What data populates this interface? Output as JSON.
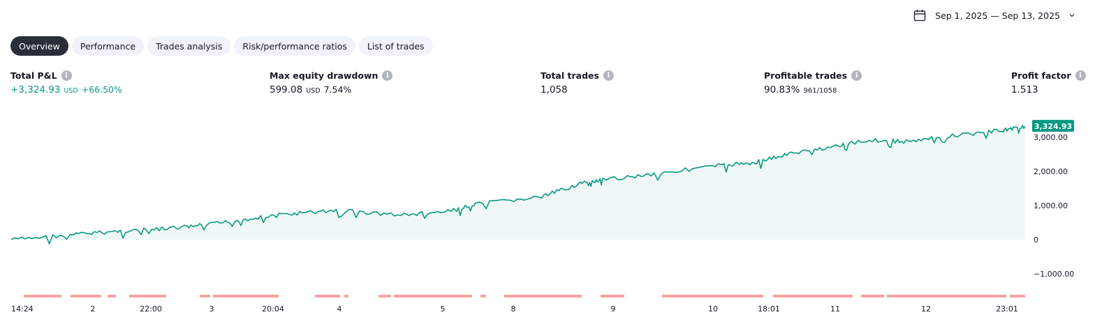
{
  "date_range": {
    "label": "Sep 1, 2025 — Sep 13, 2025"
  },
  "tabs": [
    {
      "label": "Overview",
      "active": true
    },
    {
      "label": "Performance",
      "active": false
    },
    {
      "label": "Trades analysis",
      "active": false
    },
    {
      "label": "Risk/performance ratios",
      "active": false
    },
    {
      "label": "List of trades",
      "active": false
    }
  ],
  "stats": {
    "total_pnl": {
      "label": "Total P&L",
      "value": "+3,324.93",
      "unit": "USD",
      "pct": "+66.50%"
    },
    "max_drawdown": {
      "label": "Max equity drawdown",
      "value": "599.08",
      "unit": "USD",
      "pct": "7.54%"
    },
    "total_trades": {
      "label": "Total trades",
      "value": "1,058"
    },
    "profitable_trades": {
      "label": "Profitable trades",
      "value": "90.83%",
      "detail": "961/1058"
    },
    "profit_factor": {
      "label": "Profit factor",
      "value": "1.513"
    }
  },
  "colors": {
    "line": "#089981",
    "fill": "#e8f5f2",
    "drawdown": "#f7a1a6",
    "active_tab": "#2a2e39",
    "tab_bg": "#f0f3fa"
  },
  "chart_data": {
    "type": "area",
    "y_ticks": [
      {
        "value": 3000,
        "label": "3,000.00"
      },
      {
        "value": 2000,
        "label": "2,000.00"
      },
      {
        "value": 1000,
        "label": "1,000.00"
      },
      {
        "value": 0,
        "label": "0"
      },
      {
        "value": -1000,
        "label": "−1,000.00"
      }
    ],
    "last_value_label": "3,324.93",
    "x_ticks": [
      "14:24",
      "2",
      "22:00",
      "3",
      "20:04",
      "4",
      "5",
      "8",
      "9",
      "10",
      "18:01",
      "11",
      "12",
      "23:01"
    ],
    "x": [
      0,
      0.8,
      1.4,
      2,
      2.5,
      3,
      3.6,
      4.2,
      5,
      5.6,
      6,
      6.8,
      7.3,
      7.6,
      8.2,
      9,
      9.5,
      10,
      10.6,
      11,
      11.5,
      12.1,
      12.7,
      13
    ],
    "y": [
      0,
      150,
      250,
      320,
      430,
      600,
      760,
      860,
      720,
      820,
      1050,
      1250,
      1650,
      1750,
      1920,
      2150,
      2250,
      2520,
      2750,
      2920,
      2870,
      3050,
      3200,
      3324.93
    ]
  }
}
